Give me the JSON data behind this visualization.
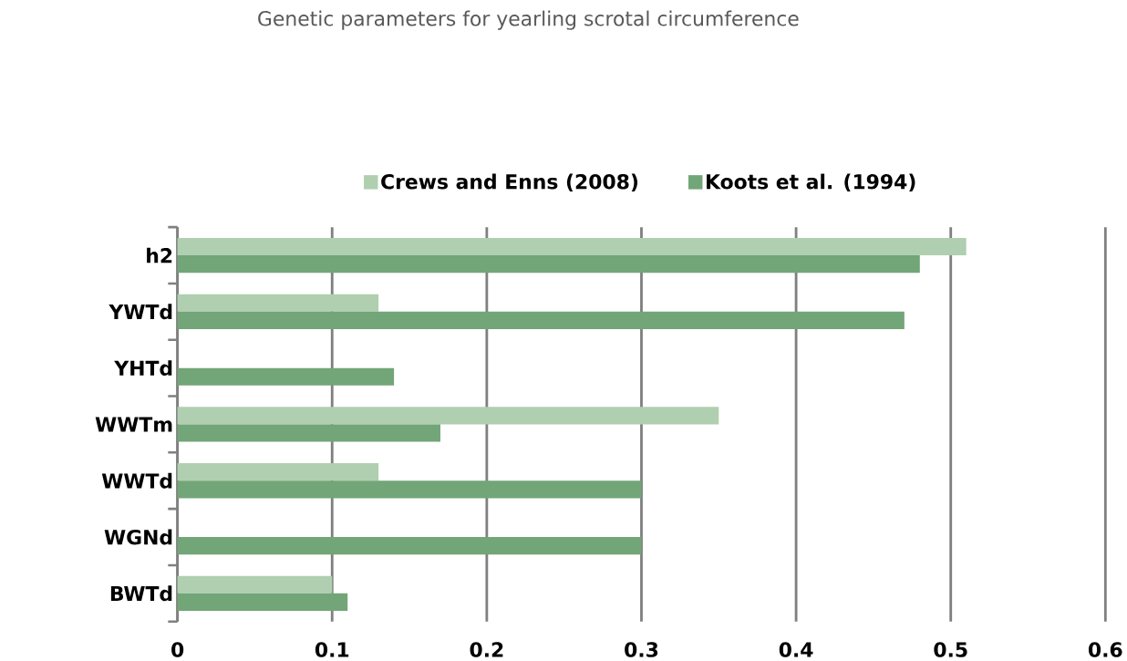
{
  "chart_data": {
    "type": "bar",
    "orientation": "horizontal",
    "title": "Genetic parameters for yearling scrotal circumference",
    "categories": [
      "h2",
      "YWTd",
      "YHTd",
      "WWTm",
      "WWTd",
      "WGNd",
      "BWTd"
    ],
    "series": [
      {
        "name": "Crews and Enns (2008)",
        "color": "#b0cfb0",
        "values": [
          0.51,
          0.13,
          null,
          0.35,
          0.13,
          null,
          0.1
        ]
      },
      {
        "name": "Koots et al. (1994)",
        "color": "#72a577",
        "values": [
          0.48,
          0.47,
          0.14,
          0.17,
          0.3,
          0.3,
          0.11
        ]
      }
    ],
    "xlim": [
      0,
      0.6
    ],
    "xticks": [
      0,
      0.1,
      0.2,
      0.3,
      0.4,
      0.5,
      0.6
    ],
    "grid": "x",
    "legend": "top"
  }
}
